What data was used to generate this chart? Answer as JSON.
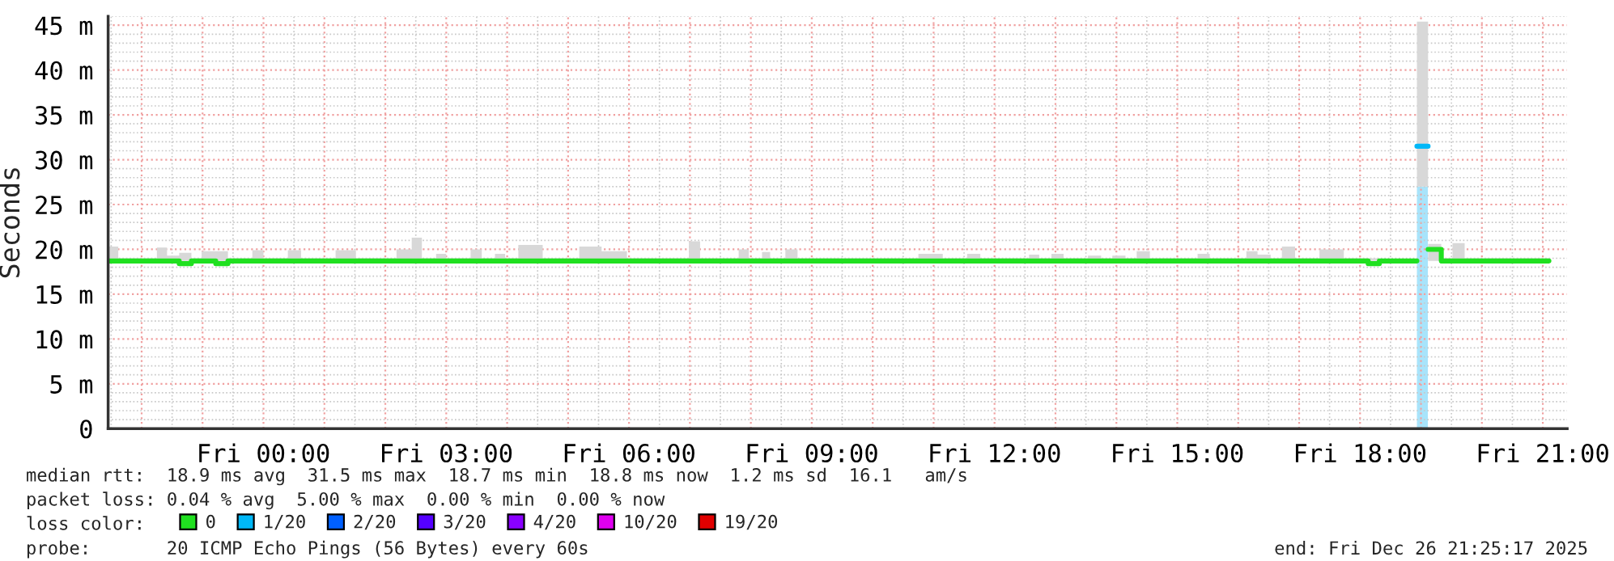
{
  "chart_data": {
    "type": "step",
    "ylabel": "Seconds",
    "xlim": [
      "2025-12-25T21:27",
      "2025-12-26T21:24"
    ],
    "ylim": [
      0,
      46
    ],
    "xticks": [
      {
        "value": "2025-12-25T22:00",
        "label": null
      },
      {
        "value": "2025-12-25T23:00",
        "label": null
      },
      {
        "value": "2025-12-26T00:00",
        "label": "Fri 00:00"
      },
      {
        "value": "2025-12-26T01:00",
        "label": null
      },
      {
        "value": "2025-12-26T02:00",
        "label": null
      },
      {
        "value": "2025-12-26T03:00",
        "label": "Fri 03:00"
      },
      {
        "value": "2025-12-26T04:00",
        "label": null
      },
      {
        "value": "2025-12-26T05:00",
        "label": null
      },
      {
        "value": "2025-12-26T06:00",
        "label": "Fri 06:00"
      },
      {
        "value": "2025-12-26T07:00",
        "label": null
      },
      {
        "value": "2025-12-26T08:00",
        "label": null
      },
      {
        "value": "2025-12-26T09:00",
        "label": "Fri 09:00"
      },
      {
        "value": "2025-12-26T10:00",
        "label": null
      },
      {
        "value": "2025-12-26T11:00",
        "label": null
      },
      {
        "value": "2025-12-26T12:00",
        "label": "Fri 12:00"
      },
      {
        "value": "2025-12-26T13:00",
        "label": null
      },
      {
        "value": "2025-12-26T14:00",
        "label": null
      },
      {
        "value": "2025-12-26T15:00",
        "label": "Fri 15:00"
      },
      {
        "value": "2025-12-26T16:00",
        "label": null
      },
      {
        "value": "2025-12-26T17:00",
        "label": null
      },
      {
        "value": "2025-12-26T18:00",
        "label": "Fri 18:00"
      },
      {
        "value": "2025-12-26T19:00",
        "label": null
      },
      {
        "value": "2025-12-26T20:00",
        "label": null
      },
      {
        "value": "2025-12-26T21:00",
        "label": "Fri 21:00"
      }
    ],
    "yticks": [
      0,
      {
        "value": 5,
        "label": "5 m"
      },
      {
        "value": 10,
        "label": "10 m"
      },
      {
        "value": 15,
        "label": "15 m"
      },
      {
        "value": 20,
        "label": "20 m"
      },
      {
        "value": 25,
        "label": "25 m"
      },
      {
        "value": 30,
        "label": "30 m"
      },
      {
        "value": 35,
        "label": "35 m"
      },
      {
        "value": 40,
        "label": "40 m"
      },
      {
        "value": 45,
        "label": "45 m"
      }
    ],
    "grid": true,
    "legend": "bottom",
    "legend_title": "loss color:",
    "series": [
      {
        "name": "0",
        "color": "#20e020",
        "x": [
          "2025-12-25T21:27",
          "2025-12-25T21:37",
          "2025-12-25T22:15",
          "2025-12-25T22:25",
          "2025-12-25T22:37",
          "2025-12-25T22:49",
          "2025-12-25T22:59",
          "2025-12-25T23:13",
          "2025-12-25T23:25",
          "2025-12-25T23:49",
          "2025-12-26T00:00",
          "2025-12-26T00:24",
          "2025-12-26T00:37",
          "2025-12-26T01:11",
          "2025-12-26T01:31",
          "2025-12-26T02:11",
          "2025-12-26T02:26",
          "2025-12-26T02:36",
          "2025-12-26T02:50",
          "2025-12-26T03:00",
          "2025-12-26T03:24",
          "2025-12-26T03:35",
          "2025-12-26T03:48",
          "2025-12-26T03:58",
          "2025-12-26T04:11",
          "2025-12-26T04:35",
          "2025-12-26T05:11",
          "2025-12-26T05:33",
          "2025-12-26T05:58",
          "2025-12-26T06:59",
          "2025-12-26T07:10",
          "2025-12-26T07:48",
          "2025-12-26T07:58",
          "2025-12-26T08:11",
          "2025-12-26T08:19",
          "2025-12-26T08:34",
          "2025-12-26T08:46",
          "2025-12-26T10:45",
          "2025-12-26T11:09",
          "2025-12-26T11:33",
          "2025-12-26T11:46",
          "2025-12-26T12:34",
          "2025-12-26T12:44",
          "2025-12-26T12:56",
          "2025-12-26T13:08",
          "2025-12-26T13:32",
          "2025-12-26T13:45",
          "2025-12-26T13:56",
          "2025-12-26T14:09",
          "2025-12-26T14:20",
          "2025-12-26T14:33",
          "2025-12-26T15:20",
          "2025-12-26T15:32",
          "2025-12-26T16:08",
          "2025-12-26T16:19",
          "2025-12-26T16:32",
          "2025-12-26T16:43",
          "2025-12-26T16:56",
          "2025-12-26T17:20",
          "2025-12-26T17:44",
          "2025-12-26T18:08",
          "2025-12-26T18:19",
          "2025-12-26T18:56",
          "2025-12-26T19:07",
          "2025-12-26T19:20",
          "2025-12-26T19:31",
          "2025-12-26T19:43",
          "2025-12-26T21:06"
        ],
        "values": [
          18.7,
          18.7,
          18.7,
          18.7,
          18.4,
          18.7,
          18.7,
          18.4,
          18.7,
          18.7,
          18.7,
          18.7,
          18.7,
          18.7,
          18.7,
          18.7,
          18.7,
          18.7,
          18.7,
          18.7,
          18.7,
          18.7,
          18.7,
          18.7,
          18.7,
          18.7,
          18.7,
          18.7,
          18.7,
          18.7,
          18.7,
          18.7,
          18.7,
          18.7,
          18.7,
          18.7,
          18.7,
          18.7,
          18.7,
          18.7,
          18.7,
          18.7,
          18.7,
          18.7,
          18.7,
          18.7,
          18.7,
          18.7,
          18.7,
          18.7,
          18.7,
          18.7,
          18.7,
          18.7,
          18.7,
          18.7,
          18.7,
          18.7,
          18.7,
          18.7,
          18.4,
          18.7,
          null,
          20.0,
          18.7,
          18.7,
          18.7,
          18.7
        ],
        "lower": [
          18.7,
          18.7,
          18.7,
          18.7,
          18.7,
          18.7,
          18.7,
          18.7,
          18.7,
          18.7,
          18.7,
          18.7,
          18.7,
          18.7,
          18.7,
          18.7,
          18.7,
          18.7,
          18.7,
          18.7,
          18.7,
          18.7,
          18.7,
          18.7,
          18.7,
          18.7,
          18.7,
          18.7,
          18.7,
          18.7,
          18.7,
          18.7,
          18.7,
          18.7,
          18.7,
          18.7,
          18.7,
          18.7,
          18.7,
          18.7,
          18.7,
          18.7,
          18.7,
          18.7,
          18.7,
          18.7,
          18.7,
          18.7,
          18.7,
          18.7,
          18.7,
          18.7,
          18.7,
          18.7,
          18.7,
          18.7,
          18.7,
          18.7,
          18.7,
          18.7,
          18.7,
          18.7,
          null,
          18.7,
          18.7,
          18.7,
          18.7,
          18.7
        ],
        "upper": [
          20.3,
          19.0,
          20.2,
          19.3,
          19.6,
          19.0,
          19.8,
          19.8,
          19.0,
          19.9,
          19.0,
          19.9,
          19.0,
          19.9,
          19.0,
          20.0,
          21.3,
          19.0,
          19.5,
          19.0,
          20.0,
          19.0,
          19.5,
          19.0,
          20.5,
          19.0,
          20.3,
          19.8,
          19.0,
          20.9,
          19.0,
          20.0,
          19.0,
          19.7,
          19.0,
          20.0,
          19.0,
          19.5,
          19.0,
          19.5,
          19.0,
          19.4,
          19.0,
          19.5,
          19.0,
          19.3,
          19.0,
          19.3,
          19.0,
          19.8,
          19.0,
          19.5,
          19.0,
          19.8,
          19.4,
          19.0,
          20.3,
          19.0,
          20.0,
          19.0,
          19.0,
          19.0,
          null,
          20.6,
          19.0,
          20.7,
          19.0,
          19.0
        ]
      },
      {
        "name": "1/20",
        "color": "#00b8f8",
        "x": [
          "2025-12-26T18:56",
          "2025-12-26T19:07"
        ],
        "values": [
          31.5,
          31.5
        ],
        "lower": [
          27.0,
          27.0
        ],
        "upper": [
          45.4,
          45.4
        ]
      },
      {
        "name": "2/20",
        "color": "#0060ff"
      },
      {
        "name": "3/20",
        "color": "#5500ff"
      },
      {
        "name": "4/20",
        "color": "#8a00ff"
      },
      {
        "name": "10/20",
        "color": "#e000f0"
      },
      {
        "name": "19/20",
        "color": "#e00000"
      },
      {
        "color": "#a8e4fb",
        "type": "bar",
        "x": [
          "2025-12-26T18:56"
        ],
        "values": [
          27.0
        ]
      }
    ],
    "annotations": [
      "median rtt:  18.9 ms avg  31.5 ms max  18.7 ms min  18.8 ms now  1.2 ms sd  16.1   am/s",
      "packet loss: 0.04 % avg  5.00 % max  0.00 % min  0.00 % now",
      "probe:       20 ICMP Echo Pings (56 Bytes) every 60s",
      "end: Fri Dec 26 21:25:17 2025"
    ]
  }
}
